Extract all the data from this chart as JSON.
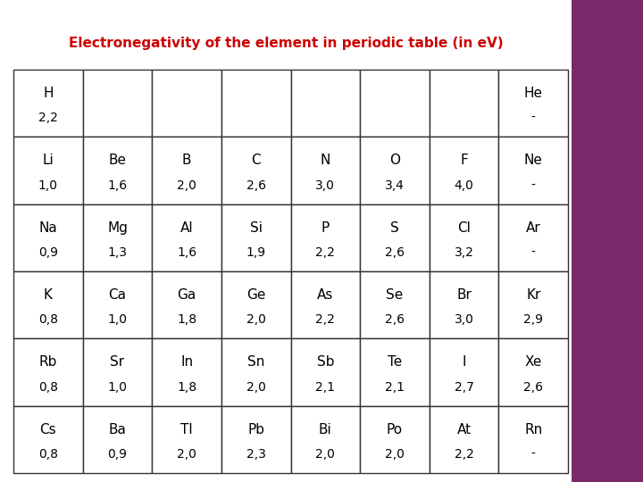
{
  "title": "Electronegativity of the element in periodic table (in eV)",
  "title_color": "#cc0000",
  "background_color": "#ffffff",
  "right_panel_color": "#7a2a6a",
  "table_data": [
    [
      [
        "H",
        "2,2"
      ],
      [
        "",
        ""
      ],
      [
        "",
        ""
      ],
      [
        "",
        ""
      ],
      [
        "",
        ""
      ],
      [
        "",
        ""
      ],
      [
        "",
        ""
      ],
      [
        "He",
        "-"
      ]
    ],
    [
      [
        "Li",
        "1,0"
      ],
      [
        "Be",
        "1,6"
      ],
      [
        "B",
        "2,0"
      ],
      [
        "C",
        "2,6"
      ],
      [
        "N",
        "3,0"
      ],
      [
        "O",
        "3,4"
      ],
      [
        "F",
        "4,0"
      ],
      [
        "Ne",
        "-"
      ]
    ],
    [
      [
        "Na",
        "0,9"
      ],
      [
        "Mg",
        "1,3"
      ],
      [
        "Al",
        "1,6"
      ],
      [
        "Si",
        "1,9"
      ],
      [
        "P",
        "2,2"
      ],
      [
        "S",
        "2,6"
      ],
      [
        "Cl",
        "3,2"
      ],
      [
        "Ar",
        "-"
      ]
    ],
    [
      [
        "K",
        "0,8"
      ],
      [
        "Ca",
        "1,0"
      ],
      [
        "Ga",
        "1,8"
      ],
      [
        "Ge",
        "2,0"
      ],
      [
        "As",
        "2,2"
      ],
      [
        "Se",
        "2,6"
      ],
      [
        "Br",
        "3,0"
      ],
      [
        "Kr",
        "2,9"
      ]
    ],
    [
      [
        "Rb",
        "0,8"
      ],
      [
        "Sr",
        "1,0"
      ],
      [
        "In",
        "1,8"
      ],
      [
        "Sn",
        "2,0"
      ],
      [
        "Sb",
        "2,1"
      ],
      [
        "Te",
        "2,1"
      ],
      [
        "I",
        "2,7"
      ],
      [
        "Xe",
        "2,6"
      ]
    ],
    [
      [
        "Cs",
        "0,8"
      ],
      [
        "Ba",
        "0,9"
      ],
      [
        "Tl",
        "2,0"
      ],
      [
        "Pb",
        "2,3"
      ],
      [
        "Bi",
        "2,0"
      ],
      [
        "Po",
        "2,0"
      ],
      [
        "At",
        "2,2"
      ],
      [
        "Rn",
        "-"
      ]
    ]
  ],
  "n_rows": 6,
  "n_cols": 8,
  "cell_text_color": "#000000",
  "border_color": "#333333",
  "element_fontsize": 11,
  "value_fontsize": 10,
  "title_fontsize": 11
}
